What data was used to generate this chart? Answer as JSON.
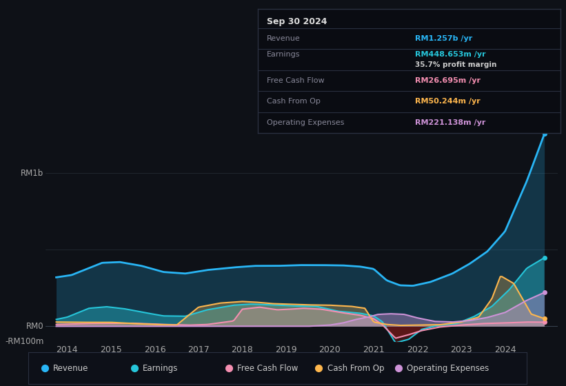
{
  "bg_color": "#0e1117",
  "series_colors": {
    "revenue": "#29b6f6",
    "earnings": "#26c6da",
    "free_cash_flow": "#f48fb1",
    "cash_from_op": "#ffb74d",
    "operating_expenses": "#ce93d8"
  },
  "legend_items": [
    {
      "label": "Revenue",
      "color": "#29b6f6"
    },
    {
      "label": "Earnings",
      "color": "#26c6da"
    },
    {
      "label": "Free Cash Flow",
      "color": "#f48fb1"
    },
    {
      "label": "Cash From Op",
      "color": "#ffb74d"
    },
    {
      "label": "Operating Expenses",
      "color": "#ce93d8"
    }
  ],
  "info_box": {
    "date": "Sep 30 2024",
    "rows": [
      {
        "label": "Revenue",
        "value": "RM1.257b /yr",
        "color": "#29b6f6",
        "sub": null
      },
      {
        "label": "Earnings",
        "value": "RM448.653m /yr",
        "color": "#26c6da",
        "sub": "35.7% profit margin"
      },
      {
        "label": "Free Cash Flow",
        "value": "RM26.695m /yr",
        "color": "#f48fb1",
        "sub": null
      },
      {
        "label": "Cash From Op",
        "value": "RM50.244m /yr",
        "color": "#ffb74d",
        "sub": null
      },
      {
        "label": "Operating Expenses",
        "value": "RM221.138m /yr",
        "color": "#ce93d8",
        "sub": null
      }
    ]
  },
  "xlim": [
    2013.5,
    2025.2
  ],
  "ylim": [
    -100,
    1300
  ],
  "x_ticks": [
    2014,
    2015,
    2016,
    2017,
    2018,
    2019,
    2020,
    2021,
    2022,
    2023,
    2024
  ],
  "y_labels": [
    {
      "y": 1000,
      "text": "RM1b"
    },
    {
      "y": 0,
      "text": "RM0"
    },
    {
      "y": -100,
      "text": "-RM100m"
    }
  ]
}
